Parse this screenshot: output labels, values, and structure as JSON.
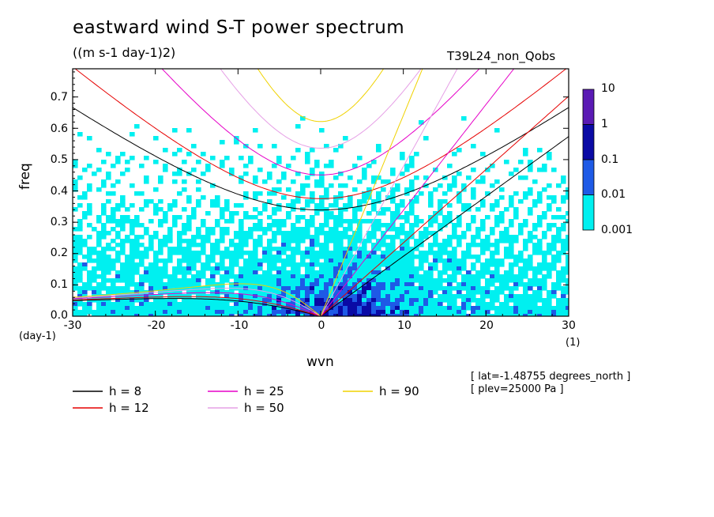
{
  "chart_data": {
    "type": "heatmap",
    "title": "eastward wind S-T power spectrum",
    "units": "((m s-1 day-1)2)",
    "run_label": "T39L24_non_Qobs",
    "xlabel": "wvn",
    "ylabel": "freq",
    "x_unit": "(1)",
    "y_unit": "(day-1)",
    "xlim": [
      -30,
      30
    ],
    "ylim": [
      0.0,
      0.79
    ],
    "xticks": [
      -30,
      -20,
      -10,
      0,
      10,
      20,
      30
    ],
    "yticks": [
      "0.0",
      "0.1",
      "0.2",
      "0.3",
      "0.4",
      "0.5",
      "0.6",
      "0.7"
    ],
    "colorbar": {
      "levels": [
        "10",
        "1",
        "0.1",
        "0.01",
        "0.001"
      ],
      "colors": [
        "#5a1ab4",
        "#0a0aa5",
        "#1e5ae6",
        "#00f0f0"
      ]
    },
    "legend": [
      {
        "label": "h =  8",
        "color": "#000000"
      },
      {
        "label": "h = 12",
        "color": "#e60000"
      },
      {
        "label": "h = 25",
        "color": "#e600c8"
      },
      {
        "label": "h = 50",
        "color": "#e6a0e6"
      },
      {
        "label": "h = 90",
        "color": "#f0d200"
      }
    ],
    "annotations": [
      "[ lat=-1.48755 degrees_north ]",
      "[ plev=25000 Pa ]"
    ]
  }
}
